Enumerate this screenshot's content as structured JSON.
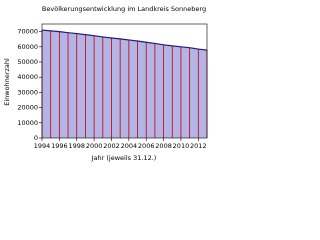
{
  "chart_data": {
    "type": "area",
    "title": "Bevölkerungsentwicklung im Landkreis Sonneberg",
    "x_label": "Jahr (jeweils 31.12.)",
    "y_label": "Einwohnerzahl",
    "x": [
      1994,
      1995,
      1996,
      1997,
      1998,
      1999,
      2000,
      2001,
      2002,
      2003,
      2004,
      2005,
      2006,
      2007,
      2008,
      2009,
      2010,
      2011,
      2012,
      2013
    ],
    "values": [
      71000,
      70500,
      70000,
      69300,
      68700,
      68000,
      67300,
      66500,
      65800,
      65200,
      64500,
      63800,
      63000,
      62200,
      61300,
      60600,
      60000,
      59400,
      58500,
      57800
    ],
    "color": "#b4b4e6",
    "line_color": "#1e1e78",
    "grid_color": "#c00000",
    "xlim": [
      1994,
      2013
    ],
    "xticks": [
      1994,
      1996,
      1998,
      2000,
      2002,
      2004,
      2006,
      2008,
      2010,
      2012
    ],
    "ylim": [
      0,
      75000
    ],
    "yticks": [
      0,
      10000,
      20000,
      30000,
      40000,
      50000,
      60000,
      70000
    ],
    "grid": true
  }
}
